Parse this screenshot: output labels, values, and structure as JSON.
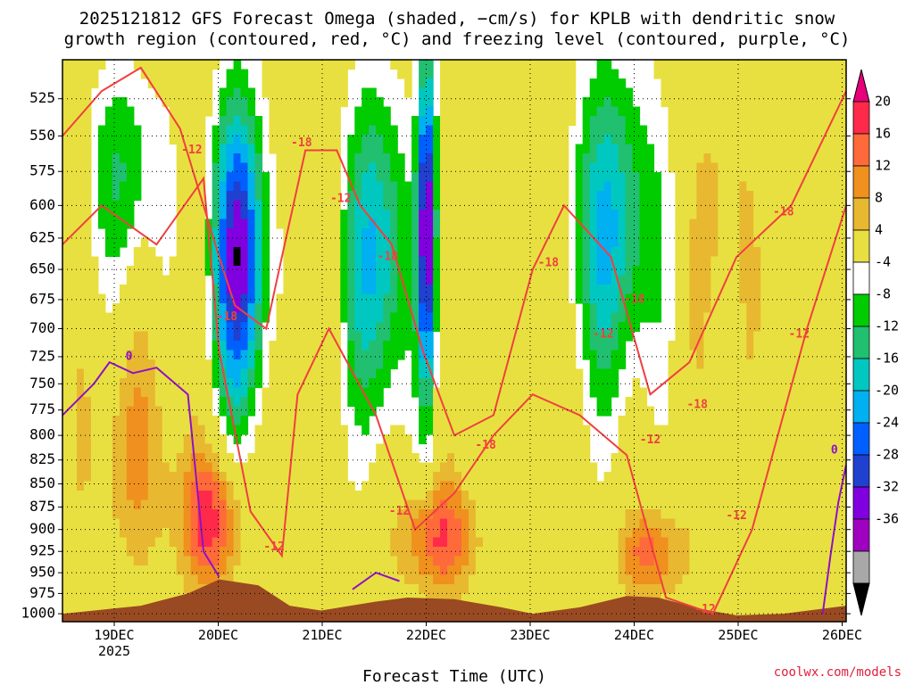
{
  "title_line1": "2025121812 GFS Forecast Omega (shaded, −cm/s) for KPLB with dendritic snow",
  "title_line2": "growth region (contoured, red, °C) and freezing level (contoured, purple, °C)",
  "credit": "coolwx.com/models",
  "chart_data": {
    "type": "heatmap",
    "xlabel": "Forecast Time (UTC)",
    "ylabel": "",
    "x_ticks": [
      "19DEC",
      "20DEC",
      "21DEC",
      "22DEC",
      "23DEC",
      "24DEC",
      "25DEC",
      "26DEC"
    ],
    "x_sublabel": "2025",
    "y_ticks": [
      525,
      550,
      575,
      600,
      625,
      650,
      675,
      700,
      725,
      750,
      775,
      800,
      825,
      850,
      875,
      900,
      925,
      950,
      975,
      1000
    ],
    "y_range_hpa": [
      500,
      1010
    ],
    "y_scale": "log-pressure",
    "grid": true,
    "colorbar": {
      "ticks": [
        20,
        16,
        12,
        8,
        4,
        -4,
        -8,
        -12,
        -16,
        -20,
        -24,
        -28,
        -32,
        -36
      ],
      "colors": [
        "#e8007a",
        "#ff2a4a",
        "#ff6a3a",
        "#f0901e",
        "#e8b830",
        "#e8e040",
        "#ffffff",
        "#00cc00",
        "#20c070",
        "#00c8c0",
        "#00b0f0",
        "#0060ff",
        "#2040d0",
        "#8000e0",
        "#a000c0",
        "#a8a8a8",
        "#000000"
      ]
    },
    "contour_labels": {
      "red": [
        "-12",
        "-18"
      ],
      "purple": [
        "0"
      ]
    },
    "colors": {
      "terrain": "#9a4a22",
      "dgz_contour": "#f04040",
      "freezing_contour": "#9010c8"
    }
  }
}
